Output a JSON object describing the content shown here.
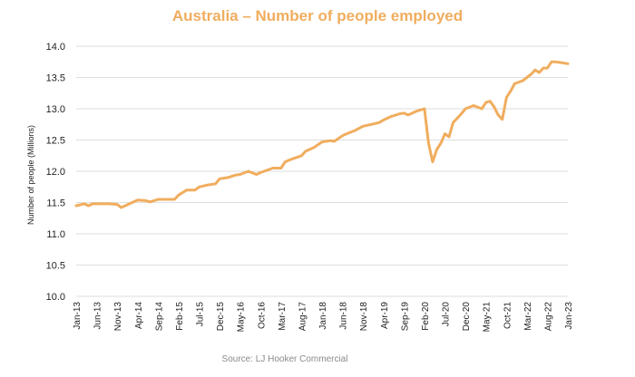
{
  "chart_data": {
    "type": "line",
    "title": "Australia – Number of people employed",
    "ylabel": "Number of people (Millions)",
    "xlabel": "",
    "source": "Source: LJ Hooker Commercial",
    "ylim": [
      10.0,
      14.0
    ],
    "y_ticks": [
      "10.0",
      "10.5",
      "11.0",
      "11.5",
      "12.0",
      "12.5",
      "13.0",
      "13.5",
      "14.0"
    ],
    "grid": true,
    "legend": "none",
    "line_color": "#f0ad5e",
    "title_color": "#f0ad5e",
    "x_ticks": [
      "Jan-13",
      "Jun-13",
      "Nov-13",
      "Apr-14",
      "Sep-14",
      "Feb-15",
      "Jul-15",
      "Dec-15",
      "May-16",
      "Oct-16",
      "Mar-17",
      "Aug-17",
      "Jan-18",
      "Jun-18",
      "Nov-18",
      "Apr-19",
      "Sep-19",
      "Feb-20",
      "Jul-20",
      "Dec-20",
      "May-21",
      "Oct-21",
      "Mar-22",
      "Aug-22",
      "Jan-23"
    ],
    "series": [
      {
        "x": [
          "Jan-13",
          "Mar-13",
          "Apr-13",
          "May-13",
          "Jun-13",
          "Sep-13",
          "Nov-13",
          "Dec-13",
          "Feb-14",
          "Apr-14",
          "Jun-14",
          "Jul-14",
          "Sep-14",
          "Nov-14",
          "Jan-15",
          "Feb-15",
          "Apr-15",
          "Jun-15",
          "Jul-15",
          "Sep-15",
          "Nov-15",
          "Dec-15",
          "Feb-16",
          "Apr-16",
          "May-16",
          "Jul-16",
          "Sep-16",
          "Oct-16",
          "Jan-17",
          "Mar-17",
          "Apr-17",
          "May-17",
          "Aug-17",
          "Sep-17",
          "Nov-17",
          "Jan-18",
          "Mar-18",
          "Apr-18",
          "Jun-18",
          "Jul-18",
          "Sep-18",
          "Nov-18",
          "Jan-19",
          "Mar-19",
          "Apr-19",
          "Jun-19",
          "Aug-19",
          "Sep-19",
          "Oct-19",
          "Dec-19",
          "Feb-20",
          "Mar-20",
          "Apr-20",
          "May-20",
          "Jun-20",
          "Jul-20",
          "Aug-20",
          "Sep-20",
          "Oct-20",
          "Nov-20",
          "Dec-20",
          "Feb-21",
          "Apr-21",
          "May-21",
          "Jun-21",
          "Jul-21",
          "Aug-21",
          "Sep-21",
          "Oct-21",
          "Nov-21",
          "Dec-21",
          "Feb-22",
          "Apr-22",
          "May-22",
          "Jun-22",
          "Jul-22",
          "Aug-22",
          "Sep-22",
          "Oct-22",
          "Nov-22",
          "Jan-23"
        ],
        "values": [
          11.45,
          11.48,
          11.45,
          11.48,
          11.48,
          11.48,
          11.47,
          11.42,
          11.48,
          11.54,
          11.53,
          11.51,
          11.55,
          11.55,
          11.55,
          11.62,
          11.7,
          11.7,
          11.75,
          11.78,
          11.8,
          11.88,
          11.9,
          11.94,
          11.95,
          12.0,
          11.95,
          11.98,
          12.05,
          12.05,
          12.15,
          12.18,
          12.25,
          12.32,
          12.38,
          12.47,
          12.49,
          12.48,
          12.57,
          12.6,
          12.65,
          12.72,
          12.75,
          12.78,
          12.82,
          12.88,
          12.92,
          12.93,
          12.9,
          12.96,
          13.0,
          12.45,
          12.15,
          12.35,
          12.45,
          12.6,
          12.55,
          12.78,
          12.85,
          12.92,
          13.0,
          13.05,
          13.0,
          13.1,
          13.12,
          13.03,
          12.9,
          12.83,
          13.18,
          13.28,
          13.4,
          13.45,
          13.55,
          13.62,
          13.58,
          13.65,
          13.65,
          13.75,
          13.75,
          13.74,
          13.72
        ]
      }
    ]
  }
}
